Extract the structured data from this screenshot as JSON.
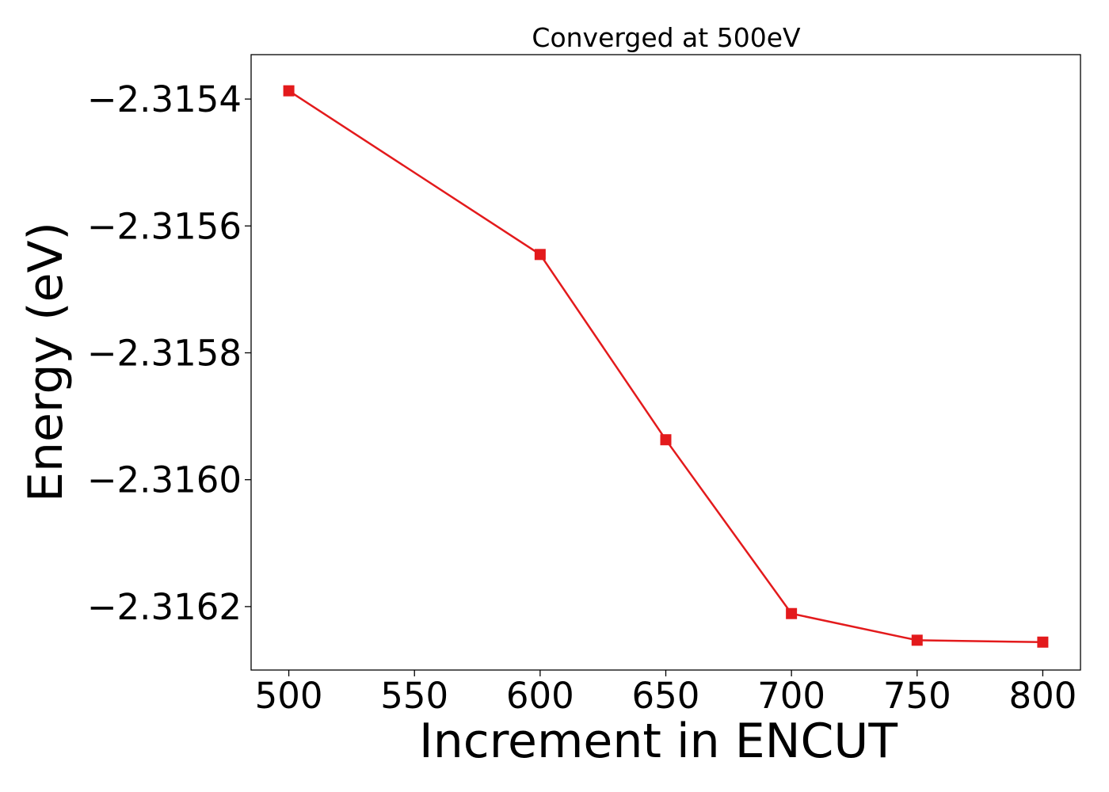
{
  "chart_data": {
    "type": "line",
    "title": "Converged at 500eV",
    "xlabel": "Increment in ENCUT",
    "ylabel": "Energy (eV)",
    "x": [
      500,
      600,
      650,
      700,
      750,
      800
    ],
    "series": [
      {
        "values": [
          -2.315387,
          -2.315645,
          -2.315937,
          -2.316211,
          -2.316253,
          -2.316256
        ],
        "color": "#e31a1c",
        "marker": "square"
      }
    ],
    "xlim": [
      485,
      815
    ],
    "ylim": [
      -2.3163,
      -2.31533
    ],
    "xticks": [
      500,
      550,
      600,
      650,
      700,
      750,
      800
    ],
    "xtick_labels": [
      "500",
      "550",
      "600",
      "650",
      "700",
      "750",
      "800"
    ],
    "yticks": [
      -2.3154,
      -2.3156,
      -2.3158,
      -2.316,
      -2.3162
    ],
    "ytick_labels": [
      "−2.3154",
      "−2.3156",
      "−2.3158",
      "−2.3160",
      "−2.3162"
    ],
    "grid": false,
    "legend": "none"
  }
}
